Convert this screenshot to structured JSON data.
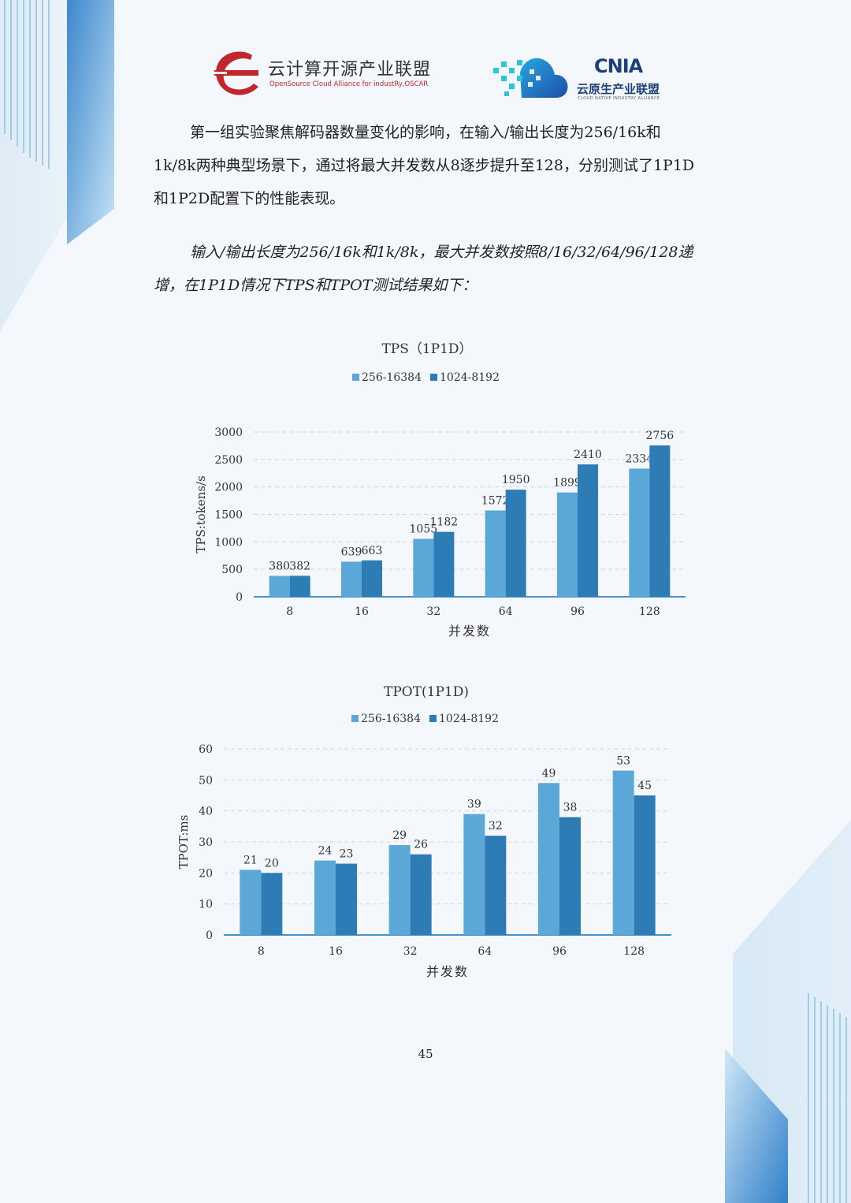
{
  "header": {
    "logo_left_cn": "云计算开源产业联盟",
    "logo_left_en": "OpenSource Cloud Alliance for industRy,OSCAR",
    "logo_right_abbr": "CNIA",
    "logo_right_cn": "云原生产业联盟",
    "logo_right_en": "CLOUD NATIVE INDUSTRY ALLIANCE"
  },
  "paragraphs": [
    "第一组实验聚焦解码器数量变化的影响，在输入/输出长度为256/16k和1k/8k两种典型场景下，通过将最大并发数从8逐步提升至128，分别测试了1P1D和1P2D配置下的性能表现。",
    "输入/输出长度为256/16k和1k/8k，最大并发数按照8/16/32/64/96/128递增，在1P1D情况下TPS和TPOT测试结果如下："
  ],
  "colors": {
    "series1": "#5aa7d8",
    "series2": "#2e7cb6",
    "axis": "#4a90c8",
    "grid": "#d0d8e0",
    "text": "#333333"
  },
  "chart_data": [
    {
      "type": "bar",
      "title": "TPS（1P1D）",
      "xlabel": "并发数",
      "ylabel": "TPS:tokens/s",
      "categories": [
        "8",
        "16",
        "32",
        "64",
        "96",
        "128"
      ],
      "series": [
        {
          "name": "256-16384",
          "values": [
            380,
            639,
            1055,
            1572,
            1899,
            2334
          ]
        },
        {
          "name": "1024-8192",
          "values": [
            382,
            663,
            1182,
            1950,
            2410,
            2756
          ]
        }
      ],
      "ylim": [
        0,
        3000
      ],
      "yticks": [
        0,
        500,
        1000,
        1500,
        2000,
        2500,
        3000
      ],
      "grid": true,
      "legend": "top"
    },
    {
      "type": "bar",
      "title": "TPOT(1P1D)",
      "xlabel": "并发数",
      "ylabel": "TPOT:ms",
      "categories": [
        "8",
        "16",
        "32",
        "64",
        "96",
        "128"
      ],
      "series": [
        {
          "name": "256-16384",
          "values": [
            21,
            24,
            29,
            39,
            49,
            53
          ]
        },
        {
          "name": "1024-8192",
          "values": [
            20,
            23,
            26,
            32,
            38,
            45
          ]
        }
      ],
      "ylim": [
        0,
        60
      ],
      "yticks": [
        0,
        10,
        20,
        30,
        40,
        50,
        60
      ],
      "grid": true,
      "legend": "top"
    }
  ],
  "page_number": "45"
}
